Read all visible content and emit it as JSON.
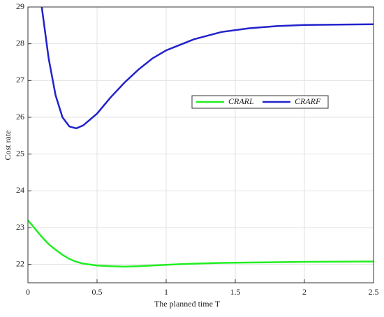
{
  "chart_data": {
    "type": "line",
    "x_label": "The planned time T",
    "y_label": "Cost rate",
    "x": [
      0,
      0.1,
      0.15,
      0.2,
      0.25,
      0.3,
      0.35,
      0.4,
      0.5,
      0.6,
      0.7,
      0.8,
      0.9,
      1,
      1.2,
      1.4,
      1.6,
      1.8,
      2,
      2.5
    ],
    "series": [
      {
        "name": "CRARL",
        "color": "#22ee22",
        "values": [
          23.2,
          22.75,
          22.55,
          22.4,
          22.26,
          22.15,
          22.07,
          22.02,
          21.97,
          21.95,
          21.94,
          21.95,
          21.97,
          21.99,
          22.02,
          22.04,
          22.05,
          22.06,
          22.07,
          22.08
        ]
      },
      {
        "name": "CRARF",
        "color": "#2222cc",
        "values": [
          null,
          29,
          27.6,
          26.6,
          26.0,
          25.75,
          25.7,
          25.78,
          26.1,
          26.55,
          26.95,
          27.3,
          27.6,
          27.82,
          28.12,
          28.32,
          28.42,
          28.48,
          28.51,
          28.53
        ]
      }
    ],
    "xlim": [
      0,
      2.5
    ],
    "xticks": [
      0,
      0.5,
      1,
      1.5,
      2,
      2.5
    ],
    "ylim": [
      21.5,
      29
    ],
    "yticks": [
      22,
      23,
      24,
      25,
      26,
      27,
      28,
      29
    ],
    "grid": true,
    "legend_position": "center"
  }
}
